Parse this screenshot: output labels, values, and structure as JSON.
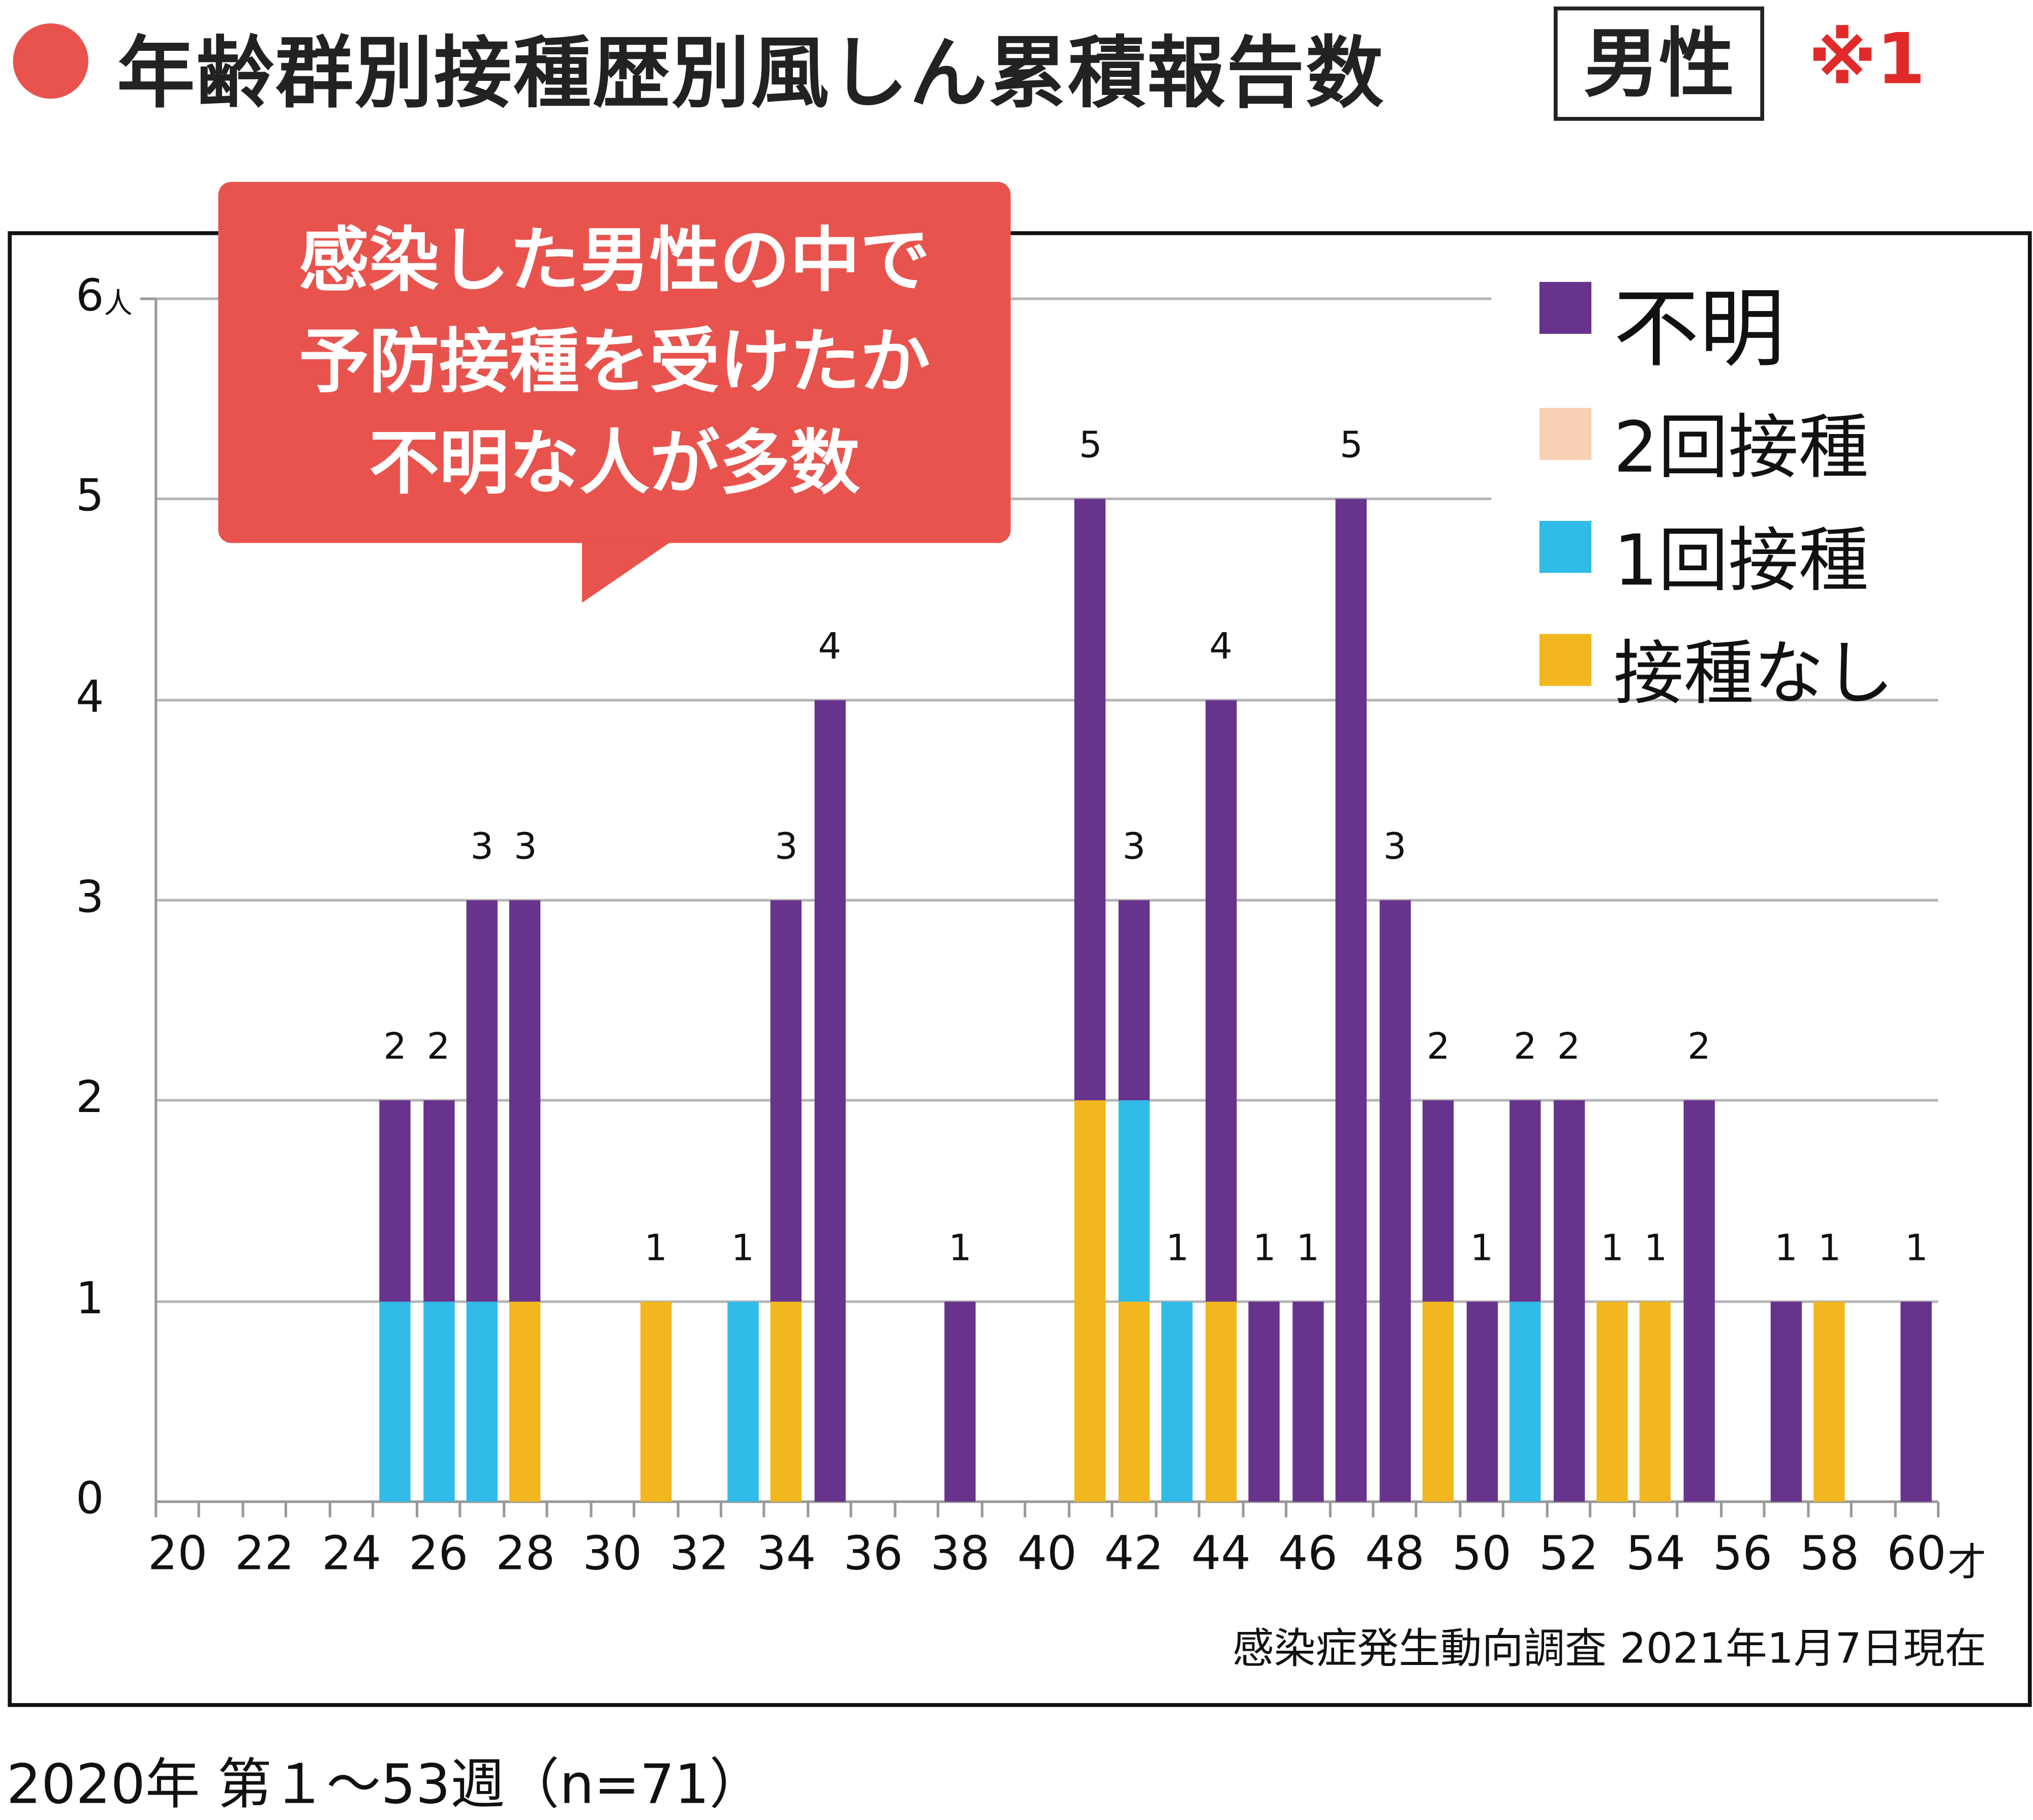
{
  "header": {
    "title": "年齢群別接種歴別風しん累積報告数",
    "sex": "男性",
    "note_mark": "※1"
  },
  "callout": {
    "lines": [
      "感染した男性の中で",
      "予防接種を受けたか",
      "不明な人が多数"
    ]
  },
  "source": "感染症発生動向調査 2021年1月7日現在",
  "footnote": "2020年 第１～53週（n=71）",
  "colors": {
    "unknown": "#68338d",
    "two_dose": "#f8d0b4",
    "one_dose": "#31bbe8",
    "none": "#f2b71f",
    "accent": "#e8534e"
  },
  "chart_data": {
    "type": "bar",
    "stacked": true,
    "title": "年齢群別接種歴別風しん累積報告数 男性",
    "xlabel": "才",
    "ylabel": "人",
    "ylim": [
      0,
      6
    ],
    "yticks": [
      "0",
      "1",
      "2",
      "3",
      "4",
      "5",
      "6"
    ],
    "y_unit": "人",
    "xticks": [
      "20",
      "22",
      "24",
      "26",
      "28",
      "30",
      "32",
      "34",
      "36",
      "38",
      "40",
      "42",
      "44",
      "46",
      "48",
      "50",
      "52",
      "54",
      "56",
      "58",
      "60"
    ],
    "x_unit": "才",
    "xrange": [
      20,
      60
    ],
    "legend": {
      "placement": "top-right",
      "entries": [
        "不明",
        "2回接種",
        "1回接種",
        "接種なし"
      ]
    },
    "ages": [
      25,
      26,
      27,
      28,
      31,
      33,
      34,
      35,
      38,
      41,
      42,
      43,
      44,
      45,
      46,
      47,
      48,
      49,
      50,
      51,
      52,
      53,
      54,
      55,
      57,
      58,
      60
    ],
    "series": [
      {
        "name": "接種なし",
        "key": "none",
        "values": [
          0,
          0,
          0,
          1,
          1,
          0,
          1,
          0,
          0,
          2,
          1,
          0,
          1,
          0,
          0,
          0,
          0,
          1,
          0,
          0,
          0,
          1,
          1,
          0,
          0,
          1,
          0
        ]
      },
      {
        "name": "1回接種",
        "key": "one_dose",
        "values": [
          1,
          1,
          1,
          0,
          0,
          1,
          0,
          0,
          0,
          0,
          1,
          1,
          0,
          0,
          0,
          0,
          0,
          0,
          0,
          1,
          0,
          0,
          0,
          0,
          0,
          0,
          0
        ]
      },
      {
        "name": "2回接種",
        "key": "two_dose",
        "values": [
          0,
          0,
          0,
          0,
          0,
          0,
          0,
          0,
          0,
          0,
          0,
          0,
          0,
          0,
          0,
          0,
          0,
          0,
          0,
          0,
          0,
          0,
          0,
          0,
          0,
          0,
          0
        ]
      },
      {
        "name": "不明",
        "key": "unknown",
        "values": [
          1,
          1,
          2,
          2,
          0,
          0,
          2,
          4,
          1,
          3,
          1,
          0,
          3,
          1,
          1,
          5,
          3,
          1,
          1,
          1,
          2,
          0,
          0,
          2,
          1,
          0,
          1
        ]
      }
    ],
    "totals": [
      2,
      2,
      3,
      3,
      1,
      1,
      3,
      4,
      1,
      5,
      3,
      1,
      4,
      1,
      1,
      5,
      3,
      2,
      1,
      2,
      2,
      1,
      1,
      2,
      1,
      1,
      1
    ]
  }
}
